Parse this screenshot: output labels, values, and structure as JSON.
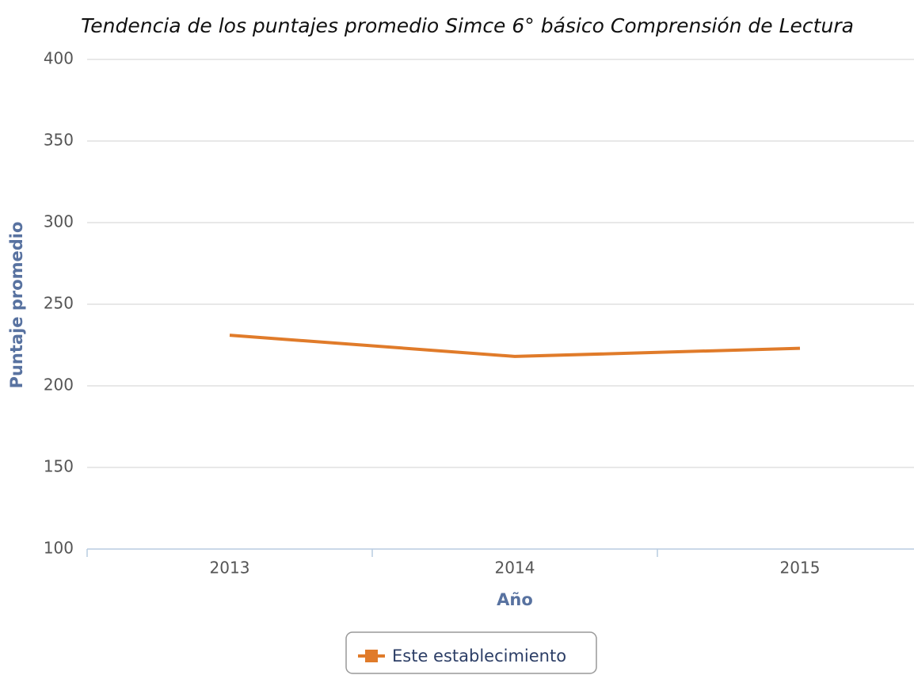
{
  "chart_data": {
    "type": "line",
    "title": "Tendencia de los puntajes promedio Simce 6° básico Comprensión de Lectura",
    "x_label": "Año",
    "y_label": "Puntaje promedio",
    "categories": [
      "2013",
      "2014",
      "2015"
    ],
    "series": [
      {
        "name": "Este establecimiento",
        "color": "#e07b2a",
        "values": [
          231,
          218,
          223
        ]
      }
    ],
    "ylim": [
      100,
      400
    ],
    "yticks": [
      100,
      150,
      200,
      250,
      300,
      350,
      400
    ],
    "grid": true,
    "legend": "bottom"
  }
}
